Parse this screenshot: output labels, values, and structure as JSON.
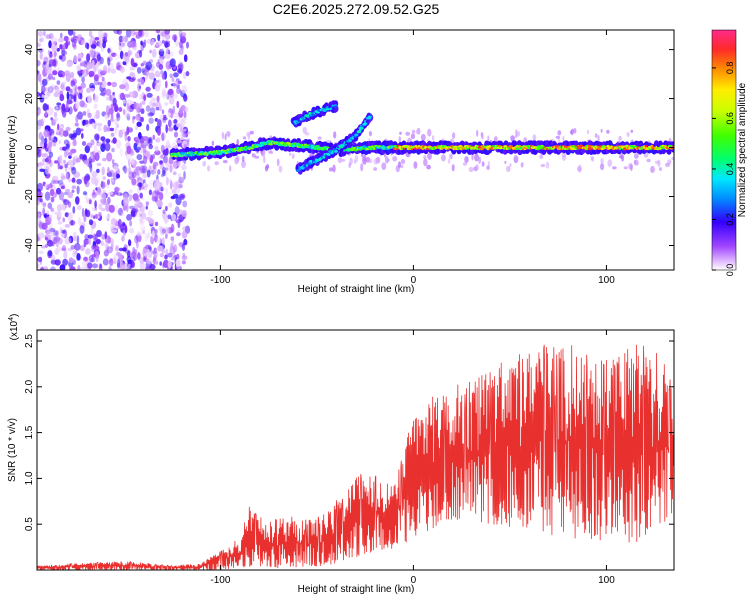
{
  "title": "C2E6.2025.272.09.52.G25",
  "chart_data": [
    {
      "id": "spectrogram",
      "type": "heatmap",
      "xlabel": "Height of straight line (km)",
      "ylabel": "Frequency (Hz)",
      "xlim": [
        -195,
        135
      ],
      "ylim": [
        -50,
        48
      ],
      "x_ticks": [
        -100,
        0,
        100
      ],
      "y_ticks": [
        -40,
        -20,
        0,
        20,
        40
      ],
      "x_tick_labels": [
        "-100",
        "0",
        "100"
      ],
      "y_tick_labels": [
        "-40",
        "-20",
        "0",
        "20",
        "40"
      ],
      "colorbar": {
        "label": "Normalized spectral amplitude",
        "range": [
          0,
          0.95
        ],
        "ticks": [
          0.0,
          0.2,
          0.4,
          0.6,
          0.8
        ],
        "tick_labels": [
          "0.0",
          "0.2",
          "0.4",
          "0.6",
          "0.8"
        ]
      },
      "noise_region_x": [
        -195,
        -123
      ],
      "ridge_segments": [
        {
          "name": "main-ridge",
          "x": [
            -125,
            -100,
            -85,
            -75,
            -60,
            -40,
            -20,
            0,
            40,
            80,
            135
          ],
          "freq": [
            -3,
            -2,
            0,
            2,
            1,
            -1,
            0,
            0,
            0,
            0,
            0
          ]
        },
        {
          "name": "rising-branch",
          "x": [
            -60,
            -50,
            -40,
            -30,
            -22
          ],
          "freq": [
            -9,
            -5,
            -1,
            5,
            13
          ]
        },
        {
          "name": "upper-branch",
          "x": [
            -62,
            -55,
            -48,
            -40
          ],
          "freq": [
            10,
            13,
            15,
            17
          ]
        }
      ]
    },
    {
      "id": "snr",
      "type": "line",
      "xlabel": "Height of straight line (km)",
      "ylabel": "SNR (10 * v/v)",
      "scale_label": "(x10",
      "scale_exponent": "4",
      "scale_suffix": ")",
      "xlim": [
        -195,
        135
      ],
      "ylim": [
        0,
        2.62
      ],
      "x_ticks": [
        -100,
        0,
        100
      ],
      "y_ticks": [
        0.5,
        1.0,
        1.5,
        2.0,
        2.5
      ],
      "x_tick_labels": [
        "-100",
        "0",
        "100"
      ],
      "y_tick_labels": [
        "0.5",
        "1.0",
        "1.5",
        "2.0",
        "2.5"
      ],
      "color": "#e8302e",
      "envelope": {
        "x": [
          -195,
          -150,
          -125,
          -110,
          -100,
          -90,
          -85,
          -75,
          -65,
          -55,
          -45,
          -35,
          -28,
          -20,
          -10,
          0,
          10,
          20,
          40,
          60,
          80,
          100,
          120,
          135
        ],
        "max": [
          0.05,
          0.1,
          0.05,
          0.07,
          0.22,
          0.35,
          0.72,
          0.55,
          0.6,
          0.55,
          0.62,
          0.9,
          1.05,
          1.05,
          0.95,
          1.7,
          1.9,
          2.0,
          2.2,
          2.45,
          2.5,
          2.35,
          2.55,
          2.1
        ],
        "min": [
          0.0,
          0.0,
          0.0,
          0.0,
          0.0,
          0.02,
          0.03,
          0.02,
          0.02,
          0.03,
          0.05,
          0.1,
          0.15,
          0.2,
          0.2,
          0.35,
          0.45,
          0.55,
          0.5,
          0.4,
          0.35,
          0.3,
          0.3,
          0.55
        ]
      }
    }
  ]
}
